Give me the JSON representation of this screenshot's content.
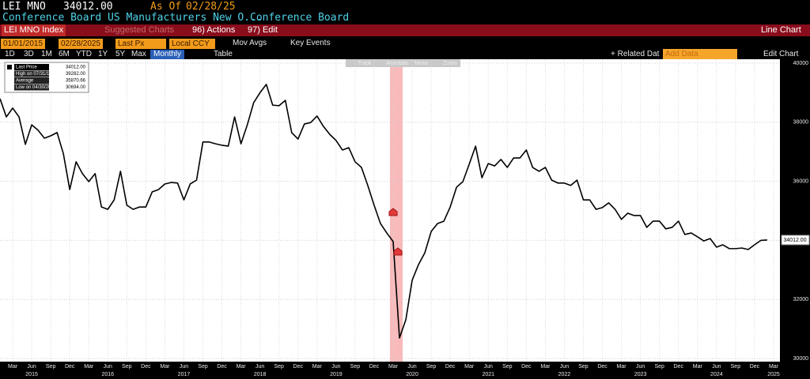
{
  "ui": {
    "header": {
      "ticker": "LEI MNO",
      "price": "34012.00",
      "as_of_label": "As Of",
      "as_of": "02/28/25",
      "description": "Conference Board US Manufacturers New O...",
      "source": "Conference Board"
    },
    "menu": {
      "security": "LEI MNO Index",
      "suggested": "Suggested Charts",
      "actions": "96) Actions",
      "edit": "97) Edit",
      "chart_type": "Line Chart"
    },
    "controls": {
      "start": "01/01/2015",
      "end": "02/28/2025",
      "field": "Last Px",
      "currency": "Local CCY",
      "mov_avgs": "Mov Avgs",
      "key_events": "Key Events"
    },
    "ranges": [
      "1D",
      "3D",
      "1M",
      "6M",
      "YTD",
      "1Y",
      "5Y",
      "Max"
    ],
    "frequency": "Monthly",
    "table": "Table",
    "related": "+ Related Dat",
    "add_data": "Add Data",
    "edit_chart": "Edit Chart",
    "toolbar": [
      "Track",
      "Annotate",
      "News",
      "Zoom"
    ]
  },
  "chart_data": {
    "type": "line",
    "color": "#000000",
    "grid": true,
    "x": [
      "2015-01",
      "2015-02",
      "2015-03",
      "2015-04",
      "2015-05",
      "2015-06",
      "2015-07",
      "2015-08",
      "2015-09",
      "2015-10",
      "2015-11",
      "2015-12",
      "2016-01",
      "2016-02",
      "2016-03",
      "2016-04",
      "2016-05",
      "2016-06",
      "2016-07",
      "2016-08",
      "2016-09",
      "2016-10",
      "2016-11",
      "2016-12",
      "2017-01",
      "2017-02",
      "2017-03",
      "2017-04",
      "2017-05",
      "2017-06",
      "2017-07",
      "2017-08",
      "2017-09",
      "2017-10",
      "2017-11",
      "2017-12",
      "2018-01",
      "2018-02",
      "2018-03",
      "2018-04",
      "2018-05",
      "2018-06",
      "2018-07",
      "2018-08",
      "2018-09",
      "2018-10",
      "2018-11",
      "2018-12",
      "2019-01",
      "2019-02",
      "2019-03",
      "2019-04",
      "2019-05",
      "2019-06",
      "2019-07",
      "2019-08",
      "2019-09",
      "2019-10",
      "2019-11",
      "2019-12",
      "2020-01",
      "2020-02",
      "2020-03",
      "2020-04",
      "2020-05",
      "2020-06",
      "2020-07",
      "2020-08",
      "2020-09",
      "2020-10",
      "2020-11",
      "2020-12",
      "2021-01",
      "2021-02",
      "2021-03",
      "2021-04",
      "2021-05",
      "2021-06",
      "2021-07",
      "2021-08",
      "2021-09",
      "2021-10",
      "2021-11",
      "2021-12",
      "2022-01",
      "2022-02",
      "2022-03",
      "2022-04",
      "2022-05",
      "2022-06",
      "2022-07",
      "2022-08",
      "2022-09",
      "2022-10",
      "2022-11",
      "2022-12",
      "2023-01",
      "2023-02",
      "2023-03",
      "2023-04",
      "2023-05",
      "2023-06",
      "2023-07",
      "2023-08",
      "2023-09",
      "2023-10",
      "2023-11",
      "2023-12",
      "2024-01",
      "2024-02",
      "2024-03",
      "2024-04",
      "2024-05",
      "2024-06",
      "2024-07",
      "2024-08",
      "2024-09",
      "2024-10",
      "2024-11",
      "2024-12",
      "2025-01",
      "2025-02"
    ],
    "values": [
      38800,
      38180,
      38480,
      38180,
      37250,
      37910,
      37730,
      37460,
      37540,
      37650,
      36930,
      35720,
      36660,
      36260,
      35990,
      36260,
      35130,
      35050,
      35370,
      36340,
      35190,
      35050,
      35130,
      35130,
      35640,
      35720,
      35910,
      35960,
      35940,
      35370,
      35910,
      36040,
      37330,
      37330,
      37270,
      37220,
      37190,
      38180,
      37270,
      37910,
      38660,
      39000,
      39282,
      38580,
      38560,
      38740,
      37650,
      37430,
      37940,
      37990,
      38210,
      37860,
      37590,
      37380,
      37060,
      37140,
      36660,
      36470,
      35860,
      35190,
      34570,
      34250,
      33960,
      30694,
      31310,
      32650,
      33180,
      33580,
      34300,
      34570,
      34650,
      35130,
      35800,
      35990,
      36580,
      37190,
      36120,
      36600,
      36520,
      36740,
      36470,
      36790,
      36790,
      37060,
      36470,
      36340,
      36470,
      36040,
      35940,
      35940,
      35860,
      36040,
      35370,
      35370,
      35050,
      35110,
      35270,
      35050,
      34710,
      34920,
      34840,
      34840,
      34440,
      34650,
      34650,
      34390,
      34440,
      34650,
      34200,
      34250,
      34120,
      33980,
      34060,
      33770,
      33850,
      33720,
      33720,
      33740,
      33690,
      33850,
      34000,
      34012
    ],
    "xlim": [
      "2015-01",
      "2025-04"
    ],
    "ylim": [
      30000,
      40000
    ],
    "yticks": [
      30000,
      32000,
      34000,
      36000,
      38000,
      40000
    ],
    "xticks": [
      {
        "value": "2015-03",
        "label": "Mar"
      },
      {
        "value": "2015-06",
        "label": "Jun"
      },
      {
        "value": "2015-09",
        "label": "Sep"
      },
      {
        "value": "2015-12",
        "label": "Dec"
      },
      {
        "value": "2016-03",
        "label": "Mar"
      },
      {
        "value": "2016-06",
        "label": "Jun"
      },
      {
        "value": "2016-09",
        "label": "Sep"
      },
      {
        "value": "2016-12",
        "label": "Dec"
      },
      {
        "value": "2017-03",
        "label": "Mar"
      },
      {
        "value": "2017-06",
        "label": "Jun"
      },
      {
        "value": "2017-09",
        "label": "Sep"
      },
      {
        "value": "2017-12",
        "label": "Dec"
      },
      {
        "value": "2018-03",
        "label": "Mar"
      },
      {
        "value": "2018-06",
        "label": "Jun"
      },
      {
        "value": "2018-09",
        "label": "Sep"
      },
      {
        "value": "2018-12",
        "label": "Dec"
      },
      {
        "value": "2019-03",
        "label": "Mar"
      },
      {
        "value": "2019-06",
        "label": "Jun"
      },
      {
        "value": "2019-09",
        "label": "Sep"
      },
      {
        "value": "2019-12",
        "label": "Dec"
      },
      {
        "value": "2020-03",
        "label": "Mar"
      },
      {
        "value": "2020-06",
        "label": "Jun"
      },
      {
        "value": "2020-09",
        "label": "Sep"
      },
      {
        "value": "2020-12",
        "label": "Dec"
      },
      {
        "value": "2021-03",
        "label": "Mar"
      },
      {
        "value": "2021-06",
        "label": "Jun"
      },
      {
        "value": "2021-09",
        "label": "Sep"
      },
      {
        "value": "2021-12",
        "label": "Dec"
      },
      {
        "value": "2022-03",
        "label": "Mar"
      },
      {
        "value": "2022-06",
        "label": "Jun"
      },
      {
        "value": "2022-09",
        "label": "Sep"
      },
      {
        "value": "2022-12",
        "label": "Dec"
      },
      {
        "value": "2023-03",
        "label": "Mar"
      },
      {
        "value": "2023-06",
        "label": "Jun"
      },
      {
        "value": "2023-09",
        "label": "Sep"
      },
      {
        "value": "2023-12",
        "label": "Dec"
      },
      {
        "value": "2024-03",
        "label": "Mar"
      },
      {
        "value": "2024-06",
        "label": "Jun"
      },
      {
        "value": "2024-09",
        "label": "Sep"
      },
      {
        "value": "2024-12",
        "label": "Dec"
      },
      {
        "value": "2025-03",
        "label": "Mar"
      }
    ],
    "year_labels": [
      {
        "value": "2015-06",
        "label": "2015"
      },
      {
        "value": "2016-06",
        "label": "2016"
      },
      {
        "value": "2017-06",
        "label": "2017"
      },
      {
        "value": "2018-06",
        "label": "2018"
      },
      {
        "value": "2019-06",
        "label": "2019"
      },
      {
        "value": "2020-06",
        "label": "2020"
      },
      {
        "value": "2021-06",
        "label": "2021"
      },
      {
        "value": "2022-06",
        "label": "2022"
      },
      {
        "value": "2023-06",
        "label": "2023"
      },
      {
        "value": "2024-06",
        "label": "2024"
      },
      {
        "value": "2025-03",
        "label": "2025"
      }
    ],
    "legend": [
      {
        "label": "Last Price",
        "value": "34012.00"
      },
      {
        "label": "High on 07/31/18",
        "value": "39282.00"
      },
      {
        "label": "Average",
        "value": "35870.66"
      },
      {
        "label": "Low on 04/30/20",
        "value": "30694.00"
      }
    ]
  }
}
